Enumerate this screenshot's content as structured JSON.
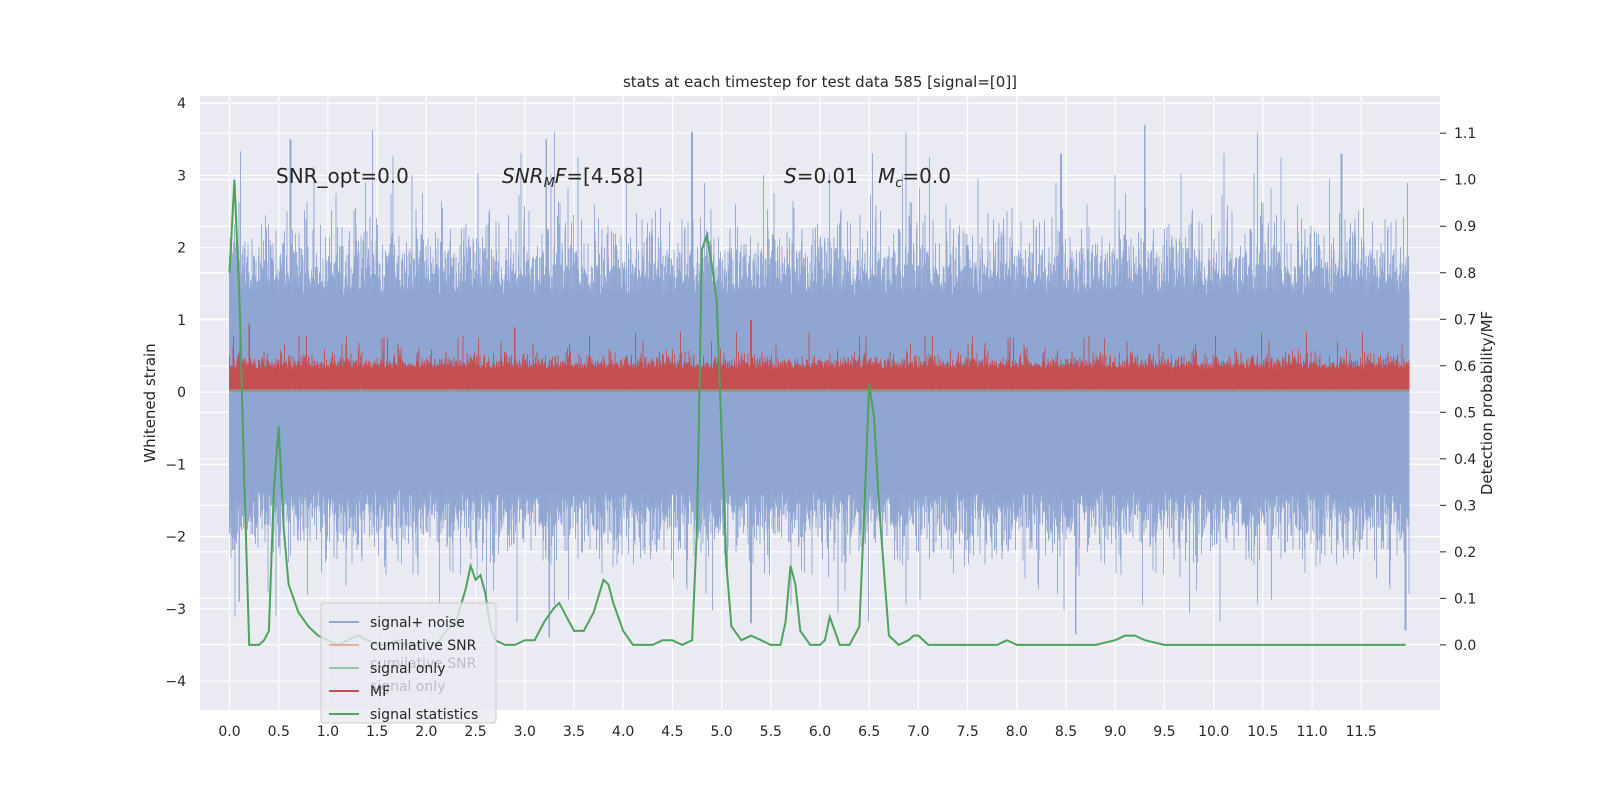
{
  "chart_data": {
    "type": "line",
    "title": "stats at each timestep for test data 585 [signal=[0]]",
    "xlabel": "",
    "ylabel": "Whitened strain",
    "y2label": "Detection probability/MF",
    "xlim": [
      -0.3,
      12.3
    ],
    "ylim": [
      -4.4,
      4.1
    ],
    "y2lim": [
      -0.14,
      1.18
    ],
    "x_ticks": [
      0.0,
      0.5,
      1.0,
      1.5,
      2.0,
      2.5,
      3.0,
      3.5,
      4.0,
      4.5,
      5.0,
      5.5,
      6.0,
      6.5,
      7.0,
      7.5,
      8.0,
      8.5,
      9.0,
      9.5,
      10.0,
      10.5,
      11.0,
      11.5
    ],
    "x_tick_labels": [
      "0.0",
      "0.5",
      "1.0",
      "1.5",
      "2.0",
      "2.5",
      "3.0",
      "3.5",
      "4.0",
      "4.5",
      "5.0",
      "5.5",
      "6.0",
      "6.5",
      "7.0",
      "7.5",
      "8.0",
      "8.5",
      "9.0",
      "9.5",
      "10.0",
      "10.5",
      "11.0",
      "11.5"
    ],
    "y_ticks": [
      -4,
      -3,
      -2,
      -1,
      0,
      1,
      2,
      3,
      4
    ],
    "y_tick_labels": [
      "−4",
      "−3",
      "−2",
      "−1",
      "0",
      "1",
      "2",
      "3",
      "4"
    ],
    "y2_ticks": [
      0.0,
      0.1,
      0.2,
      0.3,
      0.4,
      0.5,
      0.6,
      0.7,
      0.8,
      0.9,
      1.0,
      1.1
    ],
    "y2_tick_labels": [
      "0.0",
      "0.1",
      "0.2",
      "0.3",
      "0.4",
      "0.5",
      "0.6",
      "0.7",
      "0.8",
      "0.9",
      "1.0",
      "1.1"
    ],
    "grid": true,
    "annotations": [
      {
        "text": "SNR_opt=0.0",
        "x": 0.2,
        "y": 2.9
      },
      {
        "text": "SNR_MF=[4.58]",
        "x": 2.6,
        "y": 2.9
      },
      {
        "text": "S=0.01",
        "x": 5.6,
        "y": 2.9
      },
      {
        "text": "M_c=0.0",
        "x": 6.6,
        "y": 2.9
      }
    ],
    "legend_position": "lower-left",
    "legend": [
      {
        "label": "signal+ noise",
        "color": "#4c72b0"
      },
      {
        "label": "cumilative SNR",
        "color": "#dd8452"
      },
      {
        "label": "signal only",
        "color": "#55a868"
      },
      {
        "label": "MF",
        "color": "#c44e52"
      },
      {
        "label": "signal statistics",
        "color": "#4ea35a"
      }
    ],
    "legend_ghost_labels": [
      "cumilative SNR",
      "signal only"
    ],
    "series": [
      {
        "name": "signal+ noise",
        "axis": "left",
        "style": "dense-noise",
        "color": "#8fa6d2",
        "x_range": [
          0.0,
          11.99
        ],
        "typical_range": [
          -1.5,
          1.5
        ],
        "peaks": [
          {
            "x": 0.62,
            "y": 3.5
          },
          {
            "x": 3.22,
            "y": 3.5
          },
          {
            "x": 4.7,
            "y": 3.6
          },
          {
            "x": 9.3,
            "y": 3.7
          },
          {
            "x": 11.3,
            "y": 3.3
          },
          {
            "x": 8.45,
            "y": 3.3
          }
        ],
        "troughs": [
          {
            "x": 0.1,
            "y": -2.9
          },
          {
            "x": 3.25,
            "y": -3.4
          },
          {
            "x": 8.6,
            "y": -3.35
          },
          {
            "x": 11.95,
            "y": -3.3
          },
          {
            "x": 5.3,
            "y": -3.2
          }
        ]
      },
      {
        "name": "MF",
        "axis": "left",
        "style": "dense-noise",
        "color": "#c44e52",
        "x_range": [
          0.0,
          11.99
        ],
        "typical_range": [
          0.0,
          0.5
        ],
        "peaks": [
          {
            "x": 5.3,
            "y": 1.0
          },
          {
            "x": 0.2,
            "y": 0.95
          },
          {
            "x": 2.9,
            "y": 0.9
          }
        ]
      },
      {
        "name": "signal only",
        "axis": "left",
        "style": "flat",
        "color": "#8c9c8c",
        "x_range": [
          0.0,
          11.99
        ],
        "y": 0.02
      },
      {
        "name": "signal statistics",
        "axis": "right",
        "color": "#4ea35a",
        "x": [
          0.0,
          0.05,
          0.1,
          0.15,
          0.2,
          0.25,
          0.3,
          0.35,
          0.4,
          0.45,
          0.5,
          0.55,
          0.6,
          0.65,
          0.7,
          0.8,
          0.9,
          1.0,
          1.1,
          1.2,
          1.3,
          1.4,
          1.5,
          1.6,
          1.7,
          1.8,
          1.9,
          2.0,
          2.1,
          2.2,
          2.3,
          2.4,
          2.45,
          2.5,
          2.55,
          2.6,
          2.65,
          2.7,
          2.8,
          2.9,
          3.0,
          3.1,
          3.2,
          3.3,
          3.35,
          3.4,
          3.5,
          3.6,
          3.7,
          3.8,
          3.85,
          3.9,
          4.0,
          4.1,
          4.2,
          4.3,
          4.4,
          4.5,
          4.6,
          4.7,
          4.75,
          4.8,
          4.85,
          4.9,
          4.95,
          5.0,
          5.05,
          5.1,
          5.2,
          5.3,
          5.4,
          5.5,
          5.6,
          5.65,
          5.7,
          5.75,
          5.8,
          5.9,
          6.0,
          6.05,
          6.1,
          6.15,
          6.2,
          6.3,
          6.4,
          6.45,
          6.5,
          6.55,
          6.6,
          6.7,
          6.8,
          6.9,
          6.95,
          7.0,
          7.1,
          7.2,
          7.5,
          7.8,
          7.9,
          8.0,
          8.2,
          8.5,
          8.8,
          9.0,
          9.1,
          9.2,
          9.3,
          9.5,
          10.0,
          10.5,
          10.9,
          11.0,
          11.2,
          11.5,
          11.95
        ],
        "y": [
          0.8,
          1.0,
          0.75,
          0.35,
          0.0,
          0.0,
          0.0,
          0.01,
          0.03,
          0.33,
          0.47,
          0.25,
          0.13,
          0.1,
          0.07,
          0.04,
          0.02,
          0.01,
          0.0,
          0.01,
          0.02,
          0.01,
          0.0,
          0.0,
          0.01,
          0.0,
          0.0,
          0.01,
          0.0,
          0.03,
          0.05,
          0.12,
          0.17,
          0.14,
          0.15,
          0.11,
          0.04,
          0.01,
          0.0,
          0.0,
          0.01,
          0.01,
          0.05,
          0.08,
          0.09,
          0.07,
          0.03,
          0.03,
          0.07,
          0.14,
          0.13,
          0.09,
          0.03,
          0.0,
          0.0,
          0.0,
          0.01,
          0.01,
          0.0,
          0.01,
          0.25,
          0.85,
          0.88,
          0.82,
          0.74,
          0.45,
          0.17,
          0.04,
          0.01,
          0.02,
          0.01,
          0.0,
          0.0,
          0.05,
          0.17,
          0.13,
          0.03,
          0.0,
          0.0,
          0.01,
          0.06,
          0.03,
          0.0,
          0.0,
          0.04,
          0.29,
          0.56,
          0.49,
          0.3,
          0.02,
          0.0,
          0.01,
          0.02,
          0.02,
          0.0,
          0.0,
          0.0,
          0.0,
          0.01,
          0.0,
          0.0,
          0.0,
          0.0,
          0.01,
          0.02,
          0.02,
          0.01,
          0.0,
          0.0,
          0.0,
          0.0,
          0.0,
          0.0,
          0.0,
          0.0
        ]
      }
    ]
  }
}
